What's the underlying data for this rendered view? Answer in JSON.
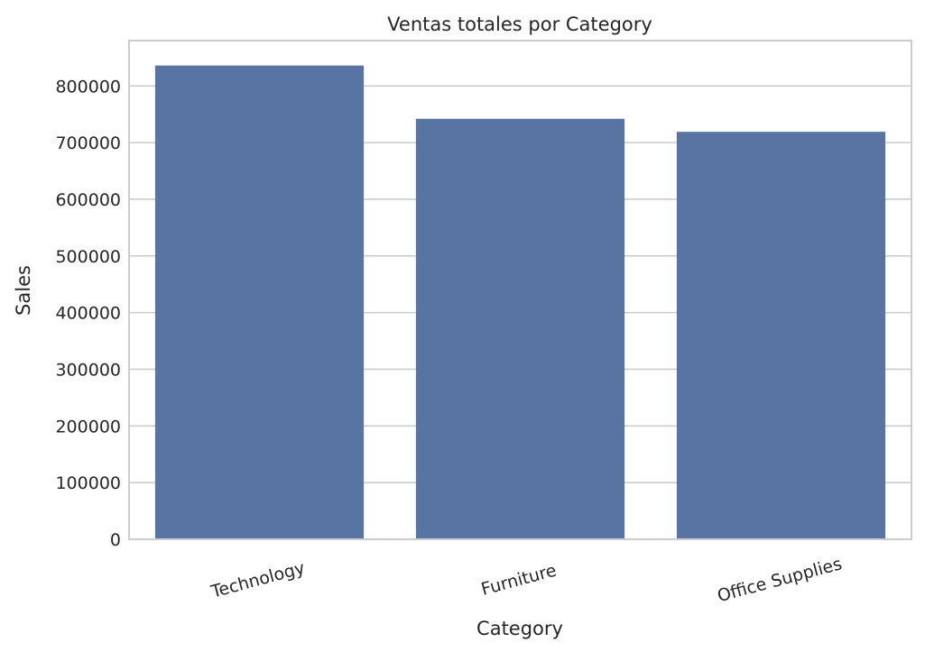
{
  "chart_data": {
    "type": "bar",
    "title": "Ventas totales por Category",
    "xlabel": "Category",
    "ylabel": "Sales",
    "categories": [
      "Technology",
      "Furniture",
      "Office Supplies"
    ],
    "values": [
      836000,
      742000,
      719000
    ],
    "ylim": [
      0,
      880000
    ],
    "yticks": [
      0,
      100000,
      200000,
      300000,
      400000,
      500000,
      600000,
      700000,
      800000
    ],
    "ytick_labels": [
      "0",
      "100000",
      "200000",
      "300000",
      "400000",
      "500000",
      "600000",
      "700000",
      "800000"
    ],
    "grid": "horizontal",
    "x_tick_rotation_deg": -15,
    "colors": {
      "bar": "#5874a2",
      "grid": "#cccccc",
      "frame": "#cccccc",
      "text": "#262626",
      "background": "#ffffff"
    }
  }
}
